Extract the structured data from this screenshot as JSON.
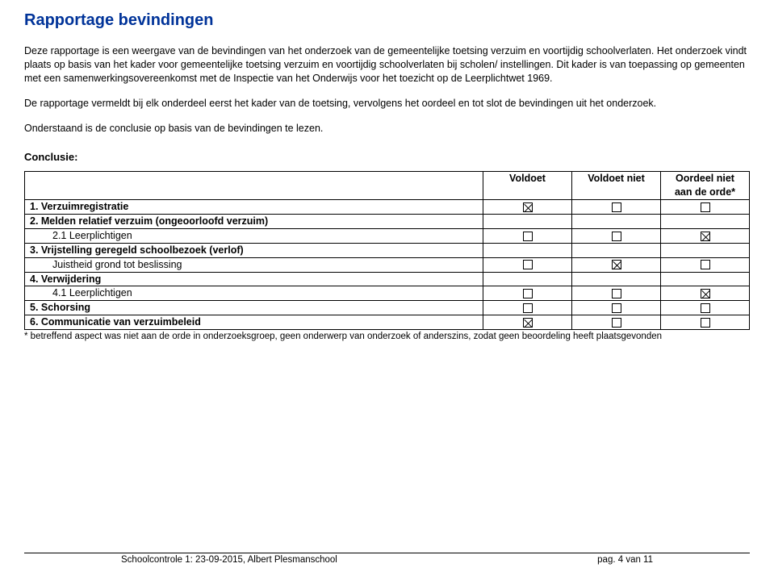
{
  "title": "Rapportage bevindingen",
  "paragraphs": {
    "p1": "Deze rapportage is een weergave van de bevindingen van het onderzoek van de gemeentelijke toetsing verzuim en voortijdig schoolverlaten. Het onderzoek vindt plaats op basis van het kader voor gemeentelijke toetsing verzuim en voortijdig schoolverlaten bij scholen/ instellingen. Dit kader is van toepassing op gemeenten met een samenwerkingsovereenkomst met de Inspectie van het Onderwijs voor het toezicht op de Leerplichtwet 1969.",
    "p2": "De rapportage vermeldt bij elk onderdeel eerst het kader van de toetsing, vervolgens het oordeel en tot slot de bevindingen uit het onderzoek.",
    "p3": "Onderstaand is de conclusie op basis van de bevindingen te lezen."
  },
  "conclusie_heading": "Conclusie:",
  "table": {
    "headers": {
      "c0": "",
      "c1": "Voldoet",
      "c2": "Voldoet niet",
      "c3": "Oordeel niet aan de orde*"
    },
    "rows": [
      {
        "label": "1. Verzuimregistratie",
        "bold": true,
        "indent": false,
        "v1": "x",
        "v2": "o",
        "v3": "o"
      },
      {
        "label": "2. Melden relatief verzuim (ongeoorloofd verzuim)",
        "bold": true,
        "indent": false,
        "v1": "",
        "v2": "",
        "v3": ""
      },
      {
        "label": "2.1 Leerplichtigen",
        "bold": false,
        "indent": true,
        "v1": "o",
        "v2": "o",
        "v3": "x"
      },
      {
        "label": "3. Vrijstelling geregeld schoolbezoek (verlof)",
        "bold": true,
        "indent": false,
        "v1": "",
        "v2": "",
        "v3": ""
      },
      {
        "label": "Juistheid grond tot beslissing",
        "bold": false,
        "indent": true,
        "v1": "o",
        "v2": "x",
        "v3": "o"
      },
      {
        "label": "4. Verwijdering",
        "bold": true,
        "indent": false,
        "v1": "",
        "v2": "",
        "v3": ""
      },
      {
        "label": "4.1 Leerplichtigen",
        "bold": false,
        "indent": true,
        "v1": "o",
        "v2": "o",
        "v3": "x"
      },
      {
        "label": "5. Schorsing",
        "bold": true,
        "indent": false,
        "v1": "o",
        "v2": "o",
        "v3": "o"
      },
      {
        "label": "6. Communicatie van verzuimbeleid",
        "bold": true,
        "indent": false,
        "v1": "x",
        "v2": "o",
        "v3": "o"
      }
    ]
  },
  "footnote": "* betreffend aspect was niet aan de orde in onderzoeksgroep, geen onderwerp van onderzoek of anderszins, zodat geen beoordeling heeft plaatsgevonden",
  "footer": {
    "left": "Schoolcontrole 1: 23-09-2015, Albert Plesmanschool",
    "right": "pag. 4 van 11"
  },
  "colors": {
    "title": "#003399",
    "text": "#000000",
    "background": "#ffffff",
    "border": "#000000"
  }
}
